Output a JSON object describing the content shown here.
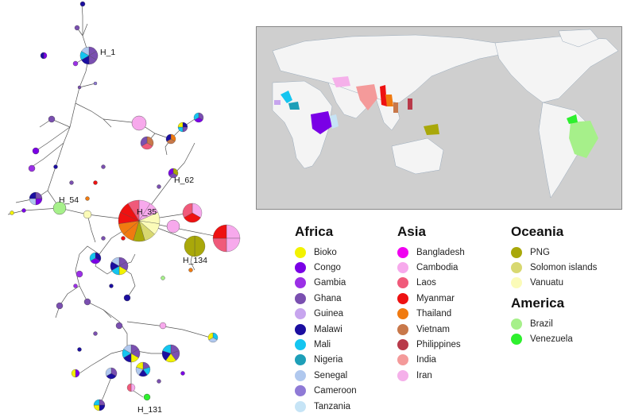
{
  "network_labels": [
    "H_1",
    "H_62",
    "H_54",
    "H_35",
    "H_134",
    "H_131"
  ],
  "colors": {
    "Bioko": "#f2f200",
    "Congo": "#7a00e6",
    "Gambia": "#9b30e6",
    "Ghana": "#7a4fb0",
    "Guinea": "#c7a5ee",
    "Malawi": "#1b0ea0",
    "Mali": "#14c5f0",
    "Nigeria": "#1e9fb8",
    "Senegal": "#b0c8ee",
    "Cameroon": "#8f7ad6",
    "Tanzania": "#c6e4f6",
    "Bangladesh": "#f000f0",
    "Cambodia": "#f7a9ec",
    "Laos": "#f05a7a",
    "Myanmar": "#ee1111",
    "Thailand": "#f07a10",
    "Vietnam": "#c8784a",
    "Philippines": "#b83a4a",
    "India": "#f49a9a",
    "Iran": "#f5b0ea",
    "PNG": "#a9a80a",
    "Solomon islands": "#d8d870",
    "Vanuatu": "#fbfbb8",
    "Brazil": "#a6f08a",
    "Venezuela": "#2ef02e"
  },
  "legend": [
    {
      "region": "Africa",
      "items": [
        "Bioko",
        "Congo",
        "Gambia",
        "Ghana",
        "Guinea",
        "Malawi",
        "Mali",
        "Nigeria",
        "Senegal",
        "Cameroon",
        "Tanzania"
      ]
    },
    {
      "region": "Asia",
      "items": [
        "Bangladesh",
        "Cambodia",
        "Laos",
        "Myanmar",
        "Thailand",
        "Vietnam",
        "Philippines",
        "India",
        "Iran"
      ]
    },
    {
      "region": "Oceania",
      "items": [
        "PNG",
        "Solomon islands",
        "Vanuatu"
      ]
    },
    {
      "region": "America",
      "items": [
        "Brazil",
        "Venezuela"
      ]
    }
  ]
}
